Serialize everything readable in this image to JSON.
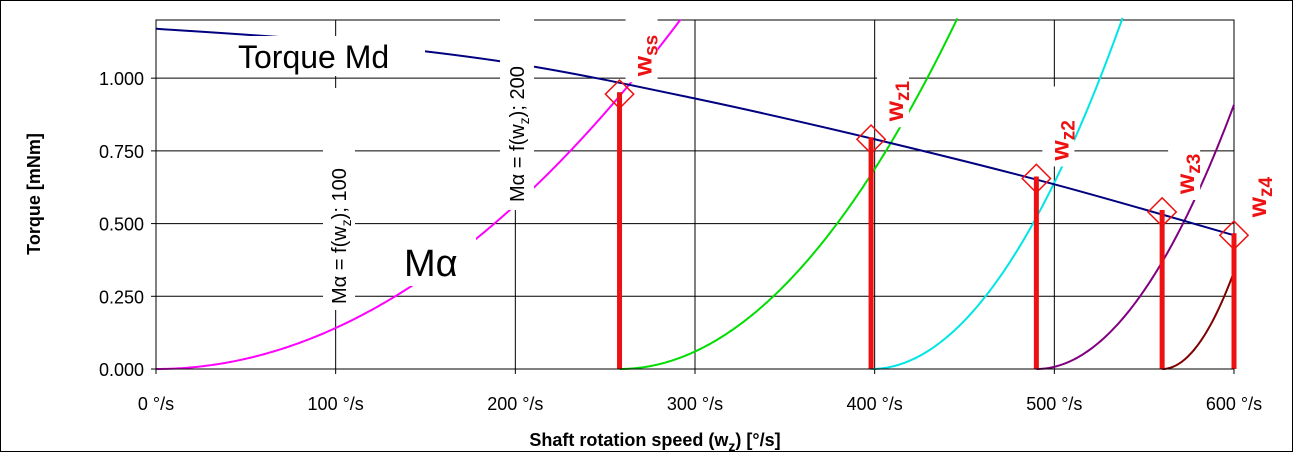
{
  "chart_data": {
    "type": "line",
    "xlabel": "Shaft rotation speed (w",
    "xlabel_sub": "z",
    "xlabel_tail": ") [°/s]",
    "ylabel": "Torque [mNm]",
    "xlim": [
      0,
      600
    ],
    "ylim": [
      0,
      1.2
    ],
    "x_ticks": [
      0,
      100,
      200,
      300,
      400,
      500,
      600
    ],
    "x_tick_labels": [
      "0 °/s",
      "100 °/s",
      "200 °/s",
      "300 °/s",
      "400 °/s",
      "500 °/s",
      "600 °/s"
    ],
    "y_ticks": [
      0,
      0.25,
      0.5,
      0.75,
      1.0
    ],
    "y_tick_labels": [
      "0.000",
      "0.250",
      "0.500",
      "0.750",
      "1.000"
    ],
    "grid": true,
    "torque_curve": {
      "name": "Torque Md",
      "color": "#000080",
      "x": [
        0,
        100,
        200,
        300,
        400,
        500,
        600
      ],
      "y": [
        1.17,
        1.125,
        1.05,
        0.93,
        0.79,
        0.635,
        0.46
      ]
    },
    "load_curves": [
      {
        "color": "#ff00ff",
        "x0": 0,
        "k": 1.41e-05
      },
      {
        "color": "#00dd00",
        "x0": 258,
        "k": 3.41e-05
      },
      {
        "color": "#00e5e5",
        "x0": 398,
        "k": 6.16e-05
      },
      {
        "color": "#800080",
        "x0": 490,
        "k": 7.51e-05
      },
      {
        "color": "#800000",
        "x0": 560,
        "k": 0.000209
      }
    ],
    "markers": [
      {
        "label": "w",
        "sub": "ss",
        "x": 258,
        "y": 0.945
      },
      {
        "label": "w",
        "sub": "z1",
        "x": 398,
        "y": 0.79
      },
      {
        "label": "w",
        "sub": "z2",
        "x": 490,
        "y": 0.655
      },
      {
        "label": "w",
        "sub": "z3",
        "x": 560,
        "y": 0.54
      },
      {
        "label": "w",
        "sub": "z4",
        "x": 600,
        "y": 0.46
      }
    ],
    "marker_color": "#ee1111",
    "annotations": {
      "torque_label": "Torque Md",
      "m_alpha": "Mα",
      "rot1_prefix": "Mα = f(w",
      "rot1_sub": "z",
      "rot1_suffix": "); 100",
      "rot2_prefix": "Mα = f(w",
      "rot2_sub": "z",
      "rot2_suffix": "); 200"
    }
  }
}
